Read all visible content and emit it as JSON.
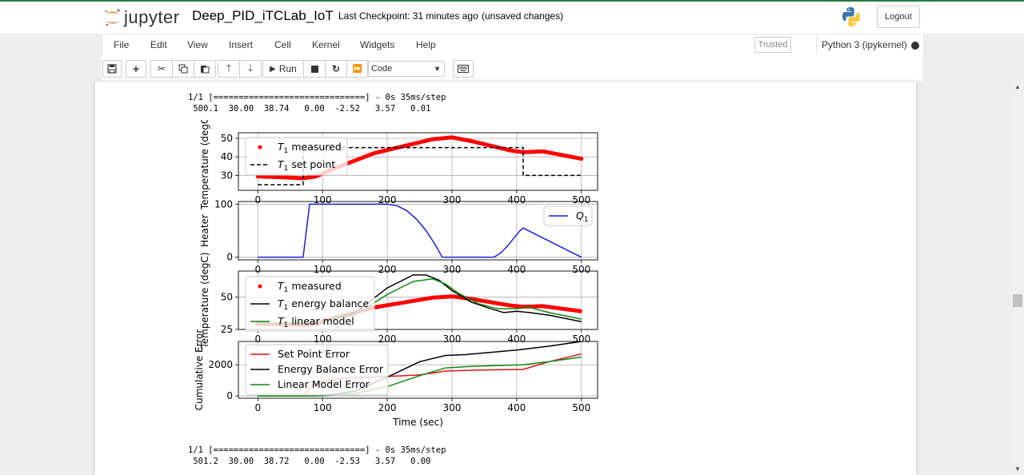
{
  "header": {
    "logo_text": "jupyter",
    "notebook_name": "Deep_PID_iTCLab_IoT",
    "checkpoint": "Last Checkpoint: 31 minutes ago",
    "autosave": "(unsaved changes)",
    "logout_label": "Logout"
  },
  "menubar": {
    "items": [
      "File",
      "Edit",
      "View",
      "Insert",
      "Cell",
      "Kernel",
      "Widgets",
      "Help"
    ],
    "trusted": "Trusted",
    "kernel": "Python 3 (ipykernel)"
  },
  "toolbar": {
    "run_label": "Run",
    "cell_type": "Code",
    "icons": [
      "save-icon",
      "add-cell-icon",
      "cut-icon",
      "copy-icon",
      "paste-icon",
      "move-up-icon",
      "move-down-icon",
      "run-icon",
      "stop-icon",
      "restart-icon",
      "fast-forward-icon",
      "keyboard-icon"
    ]
  },
  "output": {
    "progress_1": "1/1 [==============================] - 0s 35ms/step",
    "values_1": " 500.1  30.00  38.74   0.00  -2.52   3.57   0.01",
    "progress_2": "1/1 [==============================] - 0s 35ms/step",
    "values_2": " 501.2  30.00  38.72   0.00  -2.53   3.57   0.00"
  },
  "chart_data": [
    {
      "type": "line",
      "ylabel": "Temperature (degC)",
      "xlim": [
        -30,
        525
      ],
      "ylim": [
        22,
        53
      ],
      "yticks": [
        30,
        40,
        50
      ],
      "xticks": [
        0,
        100,
        200,
        300,
        400,
        500
      ],
      "grid": true,
      "legend_placement": "upper-left",
      "series": [
        {
          "name": "T_1 measured",
          "style": "red-dots",
          "x": [
            0,
            40,
            70,
            90,
            120,
            150,
            180,
            210,
            240,
            270,
            300,
            330,
            360,
            390,
            410,
            440,
            470,
            500
          ],
          "y": [
            29.5,
            29,
            28.5,
            29.5,
            34,
            38,
            42,
            44.5,
            47,
            49.5,
            50.5,
            48.5,
            46,
            43.5,
            42.5,
            43,
            41,
            39
          ]
        },
        {
          "name": "T_1 set point",
          "style": "black-dashed",
          "x": [
            0,
            70,
            70,
            410,
            410,
            500
          ],
          "y": [
            25,
            25,
            45,
            45,
            30,
            30
          ]
        }
      ]
    },
    {
      "type": "line",
      "ylabel": "Heater",
      "xlim": [
        -30,
        525
      ],
      "ylim": [
        -5,
        105
      ],
      "yticks": [
        0,
        100
      ],
      "xticks": [
        0,
        100,
        200,
        300,
        400,
        500
      ],
      "grid": true,
      "legend_placement": "upper-right",
      "series": [
        {
          "name": "Q_1",
          "color": "#1f1fd6",
          "x": [
            0,
            70,
            80,
            200,
            215,
            230,
            245,
            260,
            275,
            285,
            365,
            375,
            385,
            395,
            405,
            410,
            500
          ],
          "y": [
            0,
            0,
            100,
            100,
            97,
            88,
            72,
            50,
            22,
            0,
            0,
            8,
            20,
            35,
            50,
            55,
            0
          ]
        }
      ]
    },
    {
      "type": "line",
      "ylabel": "Temperature (degC)",
      "xlim": [
        -30,
        525
      ],
      "ylim": [
        25,
        70
      ],
      "yticks": [
        25,
        50
      ],
      "xticks": [
        0,
        100,
        200,
        300,
        400,
        500
      ],
      "grid": true,
      "legend_placement": "upper-left",
      "series": [
        {
          "name": "T_1 measured",
          "style": "red-dots",
          "x": [
            0,
            40,
            70,
            90,
            120,
            150,
            180,
            210,
            240,
            270,
            300,
            330,
            360,
            390,
            410,
            440,
            470,
            500
          ],
          "y": [
            29.5,
            29,
            28.5,
            29.5,
            34,
            38,
            42,
            44.5,
            47,
            49.5,
            50.5,
            48.5,
            46,
            43.5,
            42.5,
            43,
            41,
            39
          ]
        },
        {
          "name": "T_1 energy balance",
          "color": "#000000",
          "x": [
            0,
            70,
            100,
            150,
            200,
            240,
            260,
            280,
            300,
            330,
            360,
            380,
            400,
            420,
            450,
            500
          ],
          "y": [
            30,
            30,
            31,
            38,
            57,
            67,
            67,
            63,
            55,
            46,
            41,
            38,
            39,
            38,
            36,
            31
          ]
        },
        {
          "name": "T_1 linear model",
          "color": "#118811",
          "x": [
            0,
            70,
            100,
            150,
            200,
            240,
            270,
            290,
            310,
            340,
            370,
            400,
            420,
            450,
            500
          ],
          "y": [
            30,
            30,
            31,
            36,
            52,
            62,
            64,
            60,
            53,
            45,
            41,
            41,
            42,
            38,
            33
          ]
        }
      ]
    },
    {
      "type": "line",
      "ylabel": "Cumulative Error",
      "xlabel": "Time (sec)",
      "xlim": [
        -30,
        525
      ],
      "ylim": [
        -150,
        3500
      ],
      "yticks": [
        0,
        2000
      ],
      "xticks": [
        0,
        100,
        200,
        300,
        400,
        500
      ],
      "grid": true,
      "legend_placement": "upper-left",
      "series": [
        {
          "name": "Set Point Error",
          "color": "#dd1111",
          "x": [
            0,
            70,
            85,
            120,
            200,
            250,
            290,
            330,
            370,
            410,
            450,
            500
          ],
          "y": [
            0,
            0,
            700,
            1100,
            1250,
            1350,
            1600,
            1650,
            1680,
            1700,
            2200,
            2700
          ]
        },
        {
          "name": "Energy Balance Error",
          "color": "#000000",
          "x": [
            0,
            70,
            100,
            150,
            200,
            250,
            290,
            320,
            360,
            400,
            450,
            500
          ],
          "y": [
            0,
            0,
            10,
            300,
            1200,
            2200,
            2600,
            2650,
            2800,
            2950,
            3200,
            3500
          ]
        },
        {
          "name": "Linear Model Error",
          "color": "#118811",
          "x": [
            0,
            70,
            100,
            150,
            200,
            250,
            290,
            330,
            370,
            410,
            450,
            500
          ],
          "y": [
            0,
            0,
            10,
            150,
            600,
            1300,
            1800,
            1900,
            1950,
            2000,
            2200,
            2500
          ]
        }
      ]
    }
  ]
}
